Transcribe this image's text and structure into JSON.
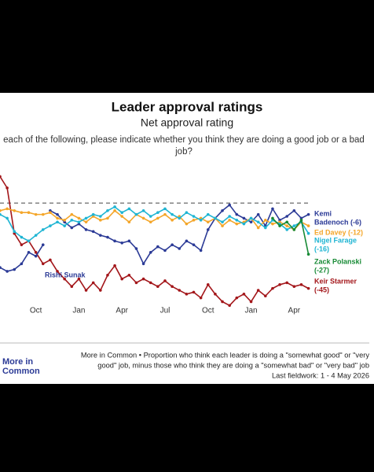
{
  "chart_data": {
    "type": "line",
    "title": "Leader approval ratings",
    "subtitle": "Net approval rating",
    "question_lines": [
      "each of the following, please indicate whether you think they are doing a good job or a bad",
      "job?"
    ],
    "categories": [
      null,
      null,
      null,
      null,
      null,
      "Oct",
      null,
      null,
      null,
      null,
      null,
      "Jan",
      null,
      null,
      null,
      null,
      null,
      "Apr",
      null,
      null,
      null,
      null,
      null,
      "Jul",
      null,
      null,
      null,
      null,
      null,
      "Oct",
      null,
      null,
      null,
      null,
      null,
      "Jan",
      null,
      null,
      null,
      null,
      null,
      "Apr",
      null,
      null
    ],
    "ylim": [
      -63,
      15
    ],
    "zero_line": 0,
    "series": [
      {
        "label_lines": [
          "Keir Starmer",
          "(-45)"
        ],
        "color": "#a3161a",
        "values": [
          14,
          8,
          -16,
          -22,
          -20,
          -26,
          -32,
          -30,
          -36,
          -40,
          -44,
          -40,
          -46,
          -42,
          -46,
          -38,
          -33,
          -40,
          -38,
          -42,
          -40,
          -42,
          -44,
          -41,
          -44,
          -46,
          -48,
          -47,
          -50,
          -43,
          -48,
          -52,
          -54,
          -50,
          -48,
          -52,
          -46,
          -49,
          -45,
          -43,
          -42,
          -44,
          -43,
          -45
        ]
      },
      {
        "label_lines": [
          "Rishi Sunak"
        ],
        "color": "#2b3a96",
        "values": [
          -34,
          -36,
          -35,
          -32,
          -26,
          -28,
          -22,
          null,
          null,
          null,
          null,
          null,
          null,
          null,
          null,
          null,
          null,
          null,
          null,
          null,
          null,
          null,
          null,
          null,
          null,
          null,
          null,
          null,
          null,
          null,
          null,
          null,
          null,
          null,
          null,
          null,
          null,
          null,
          null,
          null,
          null,
          null,
          null,
          null
        ]
      },
      {
        "label_lines": [
          "Kemi",
          "Badenoch (-6)"
        ],
        "color": "#2b3a96",
        "values": [
          null,
          null,
          null,
          null,
          null,
          null,
          null,
          -4,
          -6,
          -10,
          -13,
          -11,
          -14,
          -15,
          -17,
          -18,
          -20,
          -21,
          -20,
          -24,
          -32,
          -26,
          -23,
          -25,
          -22,
          -24,
          -20,
          -22,
          -25,
          -14,
          -8,
          -4,
          -1,
          -6,
          -8,
          -10,
          -6,
          -12,
          -3,
          -9,
          -7,
          -4,
          -8,
          -6
        ]
      },
      {
        "label_lines": [
          "Ed Davey (-12)"
        ],
        "color": "#f4a62a",
        "values": [
          -4,
          -3,
          -4,
          -5,
          -5,
          -6,
          -6,
          -5,
          -8,
          -9,
          -6,
          -8,
          -10,
          -7,
          -9,
          -8,
          -4,
          -7,
          -10,
          -6,
          -8,
          -10,
          -8,
          -6,
          -9,
          -7,
          -11,
          -9,
          -8,
          -10,
          -8,
          -12,
          -9,
          -11,
          -10,
          -8,
          -13,
          -9,
          -11,
          -10,
          -12,
          -14,
          -10,
          -12
        ]
      },
      {
        "label_lines": [
          "Nigel Farage",
          "(-16)"
        ],
        "color": "#1fb5d3",
        "values": [
          -6,
          -8,
          -15,
          -18,
          -20,
          -17,
          -14,
          -12,
          -10,
          -12,
          -9,
          -10,
          -8,
          -6,
          -7,
          -4,
          -2,
          -5,
          -3,
          -6,
          -4,
          -7,
          -5,
          -3,
          -6,
          -8,
          -5,
          -7,
          -9,
          -6,
          -8,
          -10,
          -7,
          -9,
          -11,
          -8,
          -10,
          -13,
          -9,
          -11,
          -14,
          -12,
          -10,
          -16
        ]
      },
      {
        "label_lines": [
          "Zack Polanski",
          "(-27)"
        ],
        "color": "#178a35",
        "values": [
          null,
          null,
          null,
          null,
          null,
          null,
          null,
          null,
          null,
          null,
          null,
          null,
          null,
          null,
          null,
          null,
          null,
          null,
          null,
          null,
          null,
          null,
          null,
          null,
          null,
          null,
          null,
          null,
          null,
          null,
          null,
          null,
          null,
          null,
          null,
          null,
          null,
          null,
          -8,
          -12,
          -10,
          -14,
          -9,
          -27
        ]
      }
    ],
    "logo_lines": [
      "More in",
      "Common"
    ],
    "note_lines": [
      "More in Common • Proportion who think each leader is doing a \"somewhat good\" or \"very",
      "good\" job, minus those who think they are doing a \"somewhat bad\" or \"very bad\" job",
      "Last fieldwork: 1 - 4 May 2026"
    ]
  }
}
